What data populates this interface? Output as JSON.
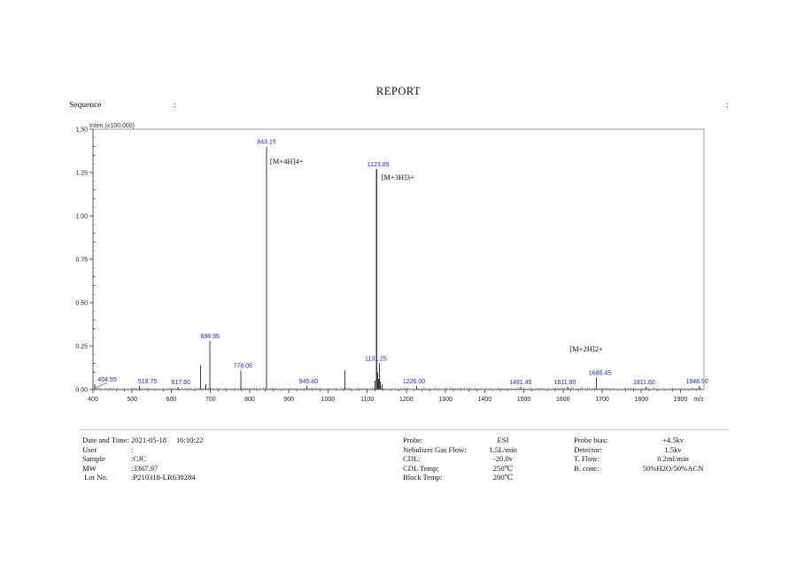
{
  "report": {
    "title": "REPORT"
  },
  "sequence": {
    "label": "Sequence",
    "colon": ":",
    "right_colon": ":"
  },
  "chart_data": {
    "type": "bar",
    "subtype": "mass-spectrum",
    "title": "",
    "ylabel": "Inten.(x100,000)",
    "xlabel": "m/z",
    "xlim": [
      400,
      1960
    ],
    "ylim": [
      0,
      1.5
    ],
    "grid": false,
    "x_ticks": [
      400,
      500,
      600,
      700,
      800,
      900,
      1000,
      1100,
      1200,
      1300,
      1400,
      1500,
      1600,
      1700,
      1800,
      1900
    ],
    "x_minor_step": 20,
    "y_ticks": [
      "0.00",
      "0.25",
      "0.50",
      "0.75",
      "1.00",
      "1.25",
      "1.50"
    ],
    "y_tick_values": [
      0,
      0.25,
      0.5,
      0.75,
      1.0,
      1.25,
      1.5
    ],
    "y_minor_step": 0.05,
    "peak_color": "#3c3c3c",
    "label_color": "#2222cc",
    "annotation_color": "#111111",
    "leader_line_color": "#cc5544",
    "peaks": [
      {
        "mz": 404.55,
        "intensity": 0.03,
        "label": "404.55",
        "dx": 14,
        "leader": true
      },
      {
        "mz": 518.75,
        "intensity": 0.02,
        "label": "518.75",
        "dx": 9
      },
      {
        "mz": 617.6,
        "intensity": 0.015,
        "label": "617.60",
        "dx": 3
      },
      {
        "mz": 698.95,
        "intensity": 0.28,
        "label": "698.95",
        "dx": 0
      },
      {
        "mz": 778.05,
        "intensity": 0.11,
        "label": "778.05",
        "dx": 2
      },
      {
        "mz": 843.15,
        "intensity": 1.4,
        "label": "843.15",
        "dx": 0
      },
      {
        "mz": 945.8,
        "intensity": 0.02,
        "label": "945.80",
        "dx": 2
      },
      {
        "mz": 1123.85,
        "intensity": 1.27,
        "label": "1123.85",
        "dx": 2
      },
      {
        "mz": 1131.25,
        "intensity": 0.15,
        "label": "1131.25",
        "dx": -4
      },
      {
        "mz": 1226.0,
        "intensity": 0.02,
        "label": "1226.00",
        "dx": -3
      },
      {
        "mz": 1491.45,
        "intensity": 0.015,
        "label": "1491.45",
        "dx": 0
      },
      {
        "mz": 1611.9,
        "intensity": 0.015,
        "label": "1611.90",
        "dx": -3
      },
      {
        "mz": 1685.45,
        "intensity": 0.07,
        "label": "1685.45",
        "dx": 4
      },
      {
        "mz": 1811.6,
        "intensity": 0.015,
        "label": "1811.60",
        "dx": -2
      },
      {
        "mz": 1948.9,
        "intensity": 0.02,
        "label": "1948.90",
        "dx": -3
      }
    ],
    "minor_peaks": [
      {
        "mz": 675.0,
        "intensity": 0.14
      },
      {
        "mz": 688.0,
        "intensity": 0.03
      },
      {
        "mz": 1043.0,
        "intensity": 0.11
      },
      {
        "mz": 1120.5,
        "intensity": 0.05
      },
      {
        "mz": 1127.0,
        "intensity": 0.1
      },
      {
        "mz": 1129.5,
        "intensity": 0.06
      },
      {
        "mz": 1134.0,
        "intensity": 0.045
      },
      {
        "mz": 1138.0,
        "intensity": 0.03
      }
    ],
    "annotations": [
      {
        "text": "[M+4H]4+",
        "mz": 852,
        "y": 1.3
      },
      {
        "text": "[M+3H]3+",
        "mz": 1136,
        "y": 1.21
      },
      {
        "text": "[M+2H]2+",
        "mz": 1617,
        "y": 0.22
      }
    ]
  },
  "metadata": {
    "left": [
      {
        "label": "Date and Time:",
        "value": "2021-05-18     16:10:22"
      },
      {
        "label": "User",
        "value": ":"
      },
      {
        "label": "Sample",
        "value": ":CJC"
      },
      {
        "label": "MW",
        "value": ":3367.97"
      },
      {
        "label": " Lot No.",
        "value": ":P210318-LR638284"
      }
    ],
    "middle": [
      {
        "label": "Probe:",
        "value": "ESI"
      },
      {
        "label": "Nebulizer Gas Flow:",
        "value": "1.5L/min"
      },
      {
        "label": "CDL:",
        "value": "-20.0v"
      },
      {
        "label": "CDL Temp:",
        "value": "250℃"
      },
      {
        "label": "Block Temp:",
        "value": "200℃"
      }
    ],
    "right": [
      {
        "label": "Probe bias:",
        "value": "+4.5kv"
      },
      {
        "label": "Detector:",
        "value": "1.5kv"
      },
      {
        "label": "T. Flow:",
        "value": "0.2ml/min"
      },
      {
        "label": "B. conc:",
        "value": "50%H2O/50%ACN"
      }
    ]
  }
}
